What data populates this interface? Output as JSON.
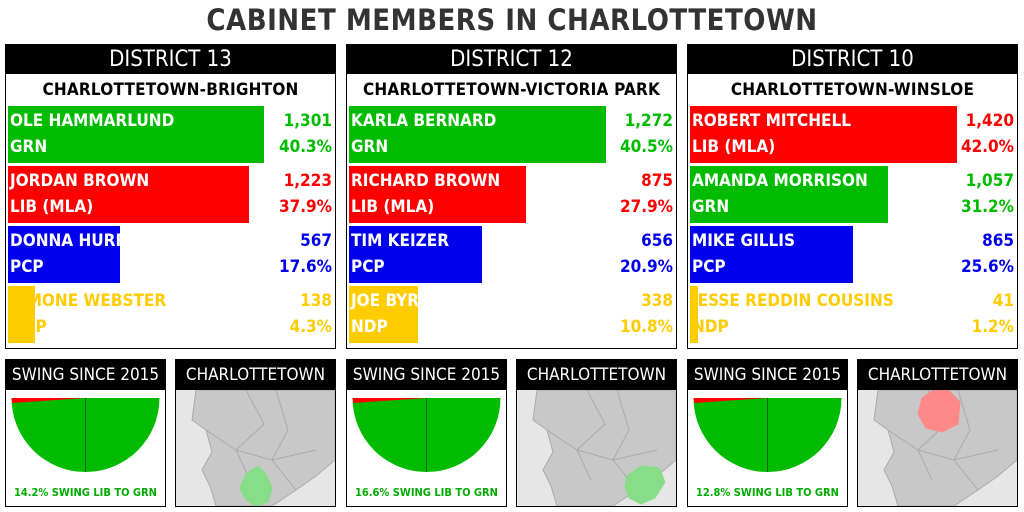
{
  "title": "CABINET MEMBERS IN CHARLOTTETOWN",
  "colors": {
    "GRN": "#00bb00",
    "LIB": "#ff0000",
    "PCP": "#0000ee",
    "NDP": "#ffcc00"
  },
  "chart_data": [
    {
      "type": "bar",
      "district": "DISTRICT 13",
      "riding": "CHARLOTTETOWN-BRIGHTON",
      "candidates": [
        {
          "name": "OLE HAMMARLUND",
          "party": "GRN",
          "party_label": "GRN",
          "votes": "1,301",
          "pct_label": "40.3%",
          "pct": 40.3
        },
        {
          "name": "JORDAN BROWN",
          "party": "LIB",
          "party_label": "LIB (MLA)",
          "votes": "1,223",
          "pct_label": "37.9%",
          "pct": 37.9
        },
        {
          "name": "DONNA HURRY",
          "party": "PCP",
          "party_label": "PCP",
          "votes": "567",
          "pct_label": "17.6%",
          "pct": 17.6
        },
        {
          "name": "SIMONE WEBSTER",
          "party": "NDP",
          "party_label": "NDP",
          "votes": "138",
          "pct_label": "4.3%",
          "pct": 4.3
        }
      ],
      "swing_label": "SWING SINCE 2015",
      "swing_text": "14.2% SWING LIB TO GRN",
      "map_label": "CHARLOTTETOWN"
    },
    {
      "type": "bar",
      "district": "DISTRICT 12",
      "riding": "CHARLOTTETOWN-VICTORIA PARK",
      "candidates": [
        {
          "name": "KARLA BERNARD",
          "party": "GRN",
          "party_label": "GRN",
          "votes": "1,272",
          "pct_label": "40.5%",
          "pct": 40.5
        },
        {
          "name": "RICHARD BROWN",
          "party": "LIB",
          "party_label": "LIB (MLA)",
          "votes": "875",
          "pct_label": "27.9%",
          "pct": 27.9
        },
        {
          "name": "TIM KEIZER",
          "party": "PCP",
          "party_label": "PCP",
          "votes": "656",
          "pct_label": "20.9%",
          "pct": 20.9
        },
        {
          "name": "JOE BYRNE",
          "party": "NDP",
          "party_label": "NDP",
          "votes": "338",
          "pct_label": "10.8%",
          "pct": 10.8
        }
      ],
      "swing_label": "SWING SINCE 2015",
      "swing_text": "16.6% SWING LIB TO GRN",
      "map_label": "CHARLOTTETOWN"
    },
    {
      "type": "bar",
      "district": "DISTRICT 10",
      "riding": "CHARLOTTETOWN-WINSLOE",
      "candidates": [
        {
          "name": "ROBERT MITCHELL",
          "party": "LIB",
          "party_label": "LIB (MLA)",
          "votes": "1,420",
          "pct_label": "42.0%",
          "pct": 42.0
        },
        {
          "name": "AMANDA MORRISON",
          "party": "GRN",
          "party_label": "GRN",
          "votes": "1,057",
          "pct_label": "31.2%",
          "pct": 31.2
        },
        {
          "name": "MIKE GILLIS",
          "party": "PCP",
          "party_label": "PCP",
          "votes": "865",
          "pct_label": "25.6%",
          "pct": 25.6
        },
        {
          "name": "JESSE REDDIN COUSINS",
          "party": "NDP",
          "party_label": "NDP",
          "votes": "41",
          "pct_label": "1.2%",
          "pct": 1.2
        }
      ],
      "swing_label": "SWING SINCE 2015",
      "swing_text": "12.8% SWING LIB TO GRN",
      "map_label": "CHARLOTTETOWN"
    }
  ]
}
